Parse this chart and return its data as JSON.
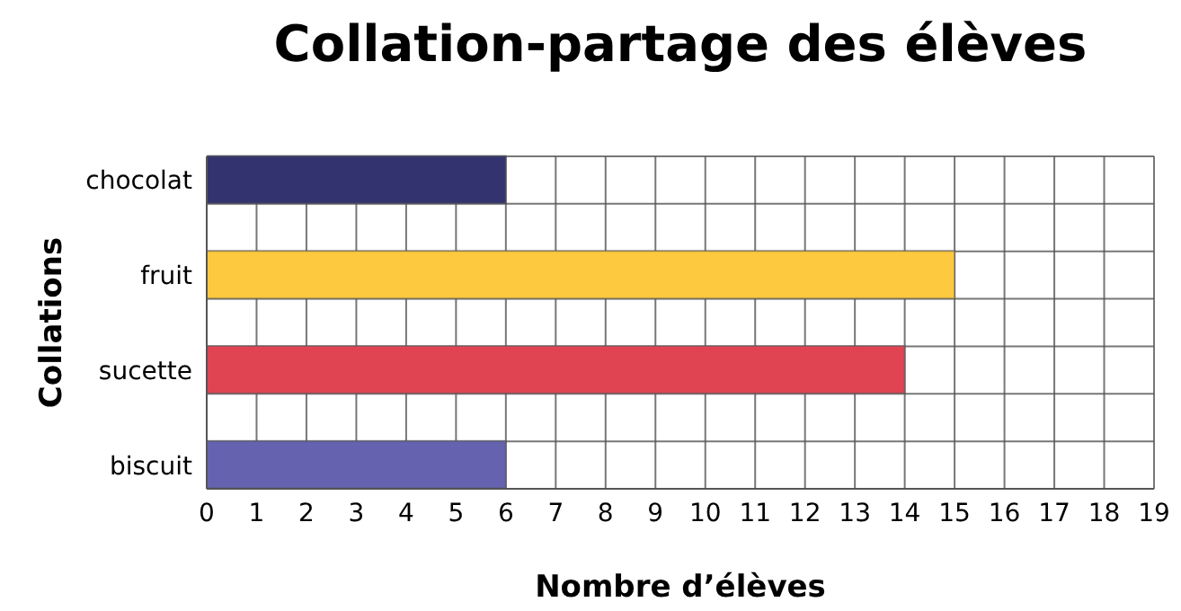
{
  "chart_data": {
    "type": "bar",
    "orientation": "horizontal",
    "title": "Collation-partage des élèves",
    "xlabel": "Nombre d’élèves",
    "ylabel": "Collations",
    "categories": [
      "chocolat",
      "fruit",
      "sucette",
      "biscuit"
    ],
    "values": [
      6,
      15,
      14,
      6
    ],
    "colors": [
      "#33336f",
      "#fdc93f",
      "#e04453",
      "#6563b0"
    ],
    "xlim": [
      0,
      19
    ],
    "xticks": [
      0,
      1,
      2,
      3,
      4,
      5,
      6,
      7,
      8,
      9,
      10,
      11,
      12,
      13,
      14,
      15,
      16,
      17,
      18,
      19
    ],
    "grid": true
  }
}
